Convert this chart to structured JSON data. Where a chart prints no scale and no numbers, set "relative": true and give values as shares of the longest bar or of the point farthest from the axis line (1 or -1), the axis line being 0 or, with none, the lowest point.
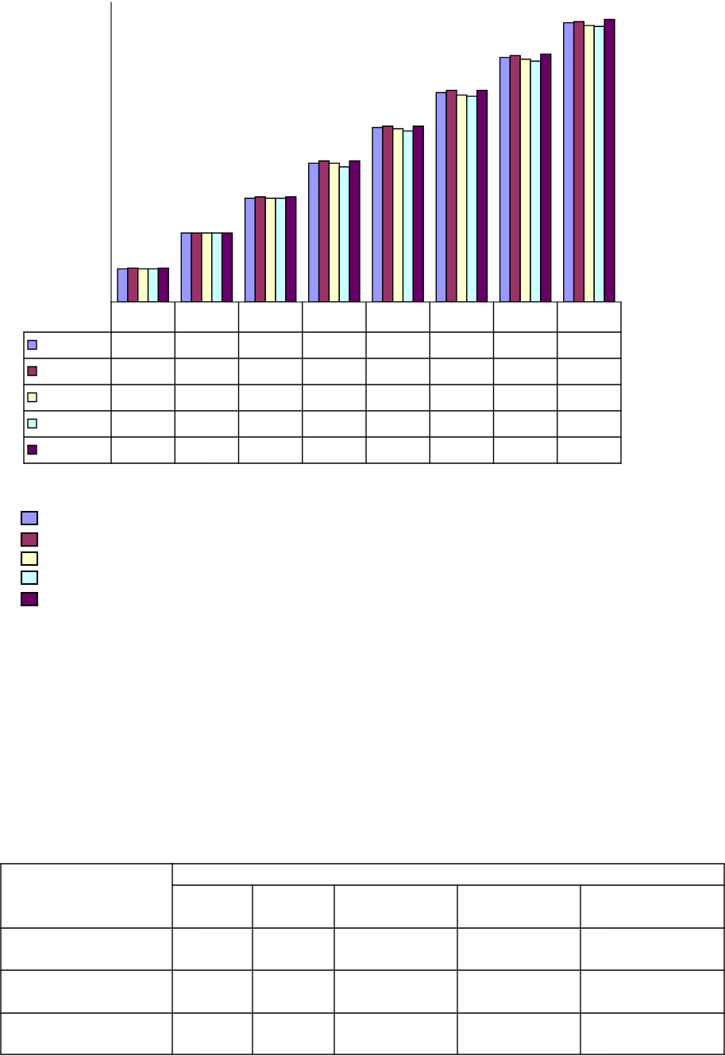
{
  "chart_data": {
    "type": "bar",
    "relative": true,
    "categories": [
      null,
      null,
      null,
      null,
      null,
      null,
      null,
      null
    ],
    "series": [
      {
        "color": "#9999ff",
        "values": [
          0.117,
          0.244,
          0.367,
          0.491,
          0.617,
          0.741,
          0.865,
          0.988
        ]
      },
      {
        "color": "#993366",
        "values": [
          0.12,
          0.244,
          0.372,
          0.499,
          0.622,
          0.749,
          0.872,
          0.992
        ]
      },
      {
        "color": "#ffffcc",
        "values": [
          0.117,
          0.244,
          0.367,
          0.491,
          0.613,
          0.732,
          0.859,
          0.978
        ]
      },
      {
        "color": "#ccffff",
        "values": [
          0.117,
          0.244,
          0.367,
          0.478,
          0.605,
          0.728,
          0.852,
          0.975
        ]
      },
      {
        "color": "#660066",
        "values": [
          0.12,
          0.244,
          0.372,
          0.499,
          0.622,
          0.749,
          0.877,
          1.0
        ]
      }
    ]
  }
}
